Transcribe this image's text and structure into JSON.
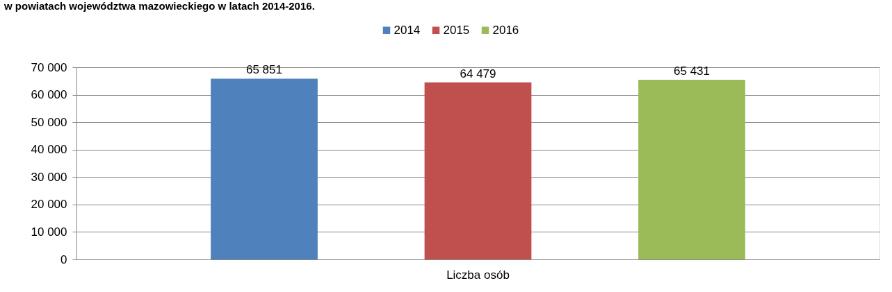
{
  "chart_data": {
    "type": "bar",
    "title": "w powiatach województwa mazowieckiego w latach 2014-2016.",
    "categories": [
      "Liczba osób"
    ],
    "series": [
      {
        "name": "2014",
        "color": "#4f81bd",
        "values": [
          65851
        ],
        "value_labels": [
          "65 851"
        ]
      },
      {
        "name": "2015",
        "color": "#c0504d",
        "values": [
          64479
        ],
        "value_labels": [
          "64 479"
        ]
      },
      {
        "name": "2016",
        "color": "#9bbb59",
        "values": [
          65431
        ],
        "value_labels": [
          "65 431"
        ]
      }
    ],
    "ylim": [
      0,
      70000
    ],
    "yticks": [
      0,
      {
        "value": 10000,
        "label": "10 000"
      },
      {
        "value": 20000,
        "label": "20 000"
      },
      {
        "value": 30000,
        "label": "30 000"
      },
      {
        "value": 40000,
        "label": "40 000"
      },
      {
        "value": 50000,
        "label": "50 000"
      },
      {
        "value": 60000,
        "label": "60 000"
      },
      {
        "value": 70000,
        "label": "70 000"
      }
    ],
    "grid": "y",
    "legend": "top"
  }
}
